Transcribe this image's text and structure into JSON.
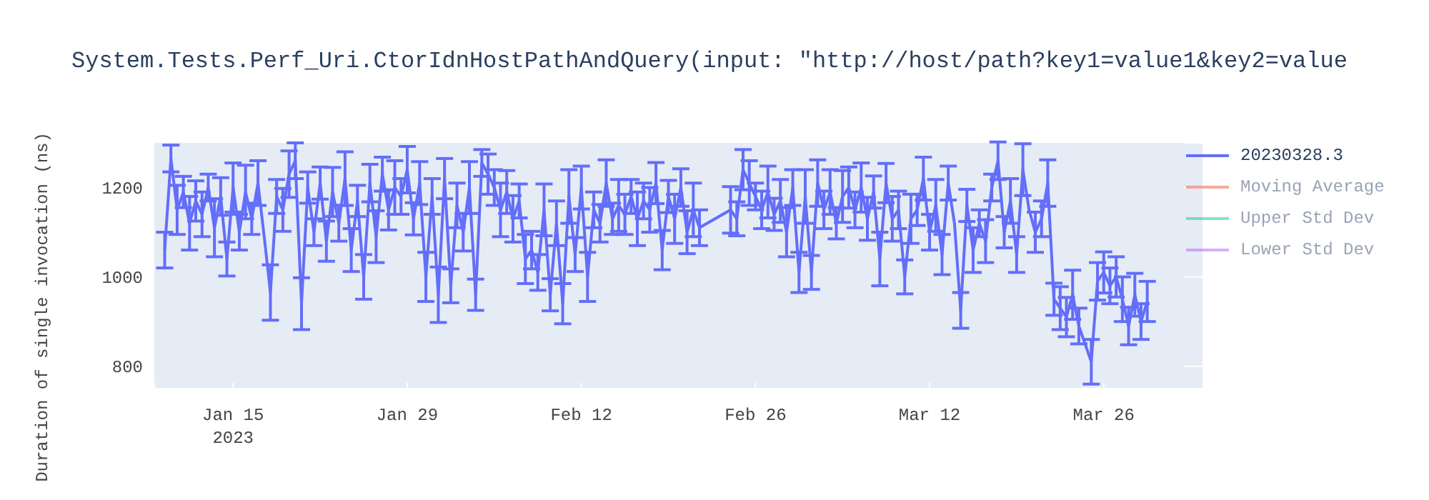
{
  "chart_data": {
    "type": "line",
    "title": "System.Tests.Perf_Uri.CtorIdnHostPathAndQuery(input: \"http://host/path?key1=value1&key2=value",
    "ylabel": "Duration of single invocation (ns)",
    "xlim": [
      "2023-01-08T16:00",
      "2023-04-03"
    ],
    "xticks": [
      {
        "value": "2023-01-15",
        "label": "Jan 15\n2023"
      },
      {
        "value": "2023-01-29",
        "label": "Jan 29"
      },
      {
        "value": "2023-02-12",
        "label": "Feb 12"
      },
      {
        "value": "2023-02-26",
        "label": "Feb 26"
      },
      {
        "value": "2023-03-12",
        "label": "Mar 12"
      },
      {
        "value": "2023-03-26",
        "label": "Mar 26"
      }
    ],
    "ylim": [
      750,
      1300
    ],
    "yticks": [
      800,
      1000,
      1200
    ],
    "grid": true,
    "legend": "top right",
    "marker": "none",
    "line_style": "solid",
    "x": [
      "2023-01-09T12:00",
      "2023-01-10T00:00",
      "2023-01-10T12:00",
      "2023-01-11T00:00",
      "2023-01-11T12:00",
      "2023-01-12T00:00",
      "2023-01-12T12:00",
      "2023-01-13T00:00",
      "2023-01-13T12:00",
      "2023-01-14T00:00",
      "2023-01-14T12:00",
      "2023-01-15T00:00",
      "2023-01-15T12:00",
      "2023-01-16T00:00",
      "2023-01-16T12:00",
      "2023-01-17T00:00",
      "2023-01-17T12:00",
      "2023-01-18T00:00",
      "2023-01-18T12:00",
      "2023-01-19T00:00",
      "2023-01-19T12:00",
      "2023-01-20T00:00",
      "2023-01-20T12:00",
      "2023-01-21T00:00",
      "2023-01-21T12:00",
      "2023-01-22T00:00",
      "2023-01-22T12:00",
      "2023-01-23T00:00",
      "2023-01-23T12:00",
      "2023-01-24T00:00",
      "2023-01-24T12:00",
      "2023-01-25T00:00",
      "2023-01-25T12:00",
      "2023-01-26T00:00",
      "2023-01-26T12:00",
      "2023-01-27T00:00",
      "2023-01-27T12:00",
      "2023-01-28T00:00",
      "2023-01-28T12:00",
      "2023-01-29T00:00",
      "2023-01-29T12:00",
      "2023-01-30T00:00",
      "2023-01-30T12:00",
      "2023-01-31T00:00",
      "2023-01-31T12:00",
      "2023-02-01T00:00",
      "2023-02-01T12:00",
      "2023-02-02T00:00",
      "2023-02-02T12:00",
      "2023-02-03T00:00",
      "2023-02-03T12:00",
      "2023-02-04T00:00",
      "2023-02-04T12:00",
      "2023-02-05T00:00",
      "2023-02-05T12:00",
      "2023-02-06T00:00",
      "2023-02-06T12:00",
      "2023-02-07T00:00",
      "2023-02-07T12:00",
      "2023-02-08T00:00",
      "2023-02-08T12:00",
      "2023-02-09T00:00",
      "2023-02-09T12:00",
      "2023-02-10T00:00",
      "2023-02-10T12:00",
      "2023-02-11T00:00",
      "2023-02-11T12:00",
      "2023-02-12T00:00",
      "2023-02-12T12:00",
      "2023-02-13T00:00",
      "2023-02-13T12:00",
      "2023-02-14T00:00",
      "2023-02-14T12:00",
      "2023-02-15T00:00",
      "2023-02-15T12:00",
      "2023-02-16T00:00",
      "2023-02-16T12:00",
      "2023-02-17T00:00",
      "2023-02-17T12:00",
      "2023-02-18T00:00",
      "2023-02-18T12:00",
      "2023-02-19T00:00",
      "2023-02-19T12:00",
      "2023-02-20T00:00",
      "2023-02-20T12:00",
      "2023-02-21T00:00",
      "2023-02-21T12:00",
      "2023-02-24T00:00",
      "2023-02-24T12:00",
      "2023-02-25T00:00",
      "2023-02-25T12:00",
      "2023-02-26T00:00",
      "2023-02-26T12:00",
      "2023-02-27T00:00",
      "2023-02-27T12:00",
      "2023-02-28T00:00",
      "2023-02-28T12:00",
      "2023-03-01T00:00",
      "2023-03-01T12:00",
      "2023-03-02T00:00",
      "2023-03-02T12:00",
      "2023-03-03T00:00",
      "2023-03-03T12:00",
      "2023-03-04T00:00",
      "2023-03-04T12:00",
      "2023-03-05T00:00",
      "2023-03-05T12:00",
      "2023-03-06T00:00",
      "2023-03-06T12:00",
      "2023-03-07T00:00",
      "2023-03-07T12:00",
      "2023-03-08T00:00",
      "2023-03-08T12:00",
      "2023-03-09T00:00",
      "2023-03-09T12:00",
      "2023-03-10T00:00",
      "2023-03-10T12:00",
      "2023-03-11T00:00",
      "2023-03-11T12:00",
      "2023-03-12T00:00",
      "2023-03-12T12:00",
      "2023-03-13T00:00",
      "2023-03-13T12:00",
      "2023-03-14T00:00",
      "2023-03-14T12:00",
      "2023-03-15T00:00",
      "2023-03-15T12:00",
      "2023-03-16T00:00",
      "2023-03-16T12:00",
      "2023-03-17T00:00",
      "2023-03-17T12:00",
      "2023-03-18T00:00",
      "2023-03-18T12:00",
      "2023-03-19T00:00",
      "2023-03-19T12:00",
      "2023-03-20T00:00",
      "2023-03-20T12:00",
      "2023-03-21T00:00",
      "2023-03-21T12:00",
      "2023-03-22T00:00",
      "2023-03-22T12:00",
      "2023-03-23T00:00",
      "2023-03-23T12:00",
      "2023-03-24T00:00",
      "2023-03-24T12:00",
      "2023-03-25T00:00",
      "2023-03-25T12:00",
      "2023-03-26T00:00",
      "2023-03-26T12:00",
      "2023-03-27T00:00",
      "2023-03-27T12:00",
      "2023-03-28T00:00",
      "2023-03-28T12:00",
      "2023-03-29T00:00",
      "2023-03-29T12:00"
    ],
    "series": [
      {
        "name": "20230328.3",
        "color": "#636efa",
        "values": [
          1060,
          1265,
          1150,
          1190,
          1120,
          1170,
          1140,
          1200,
          1110,
          1180,
          1040,
          1200,
          1100,
          1190,
          1130,
          1210,
          1090,
          965,
          1180,
          1150,
          1230,
          1260,
          940,
          1200,
          1100,
          1210,
          1080,
          1190,
          1120,
          1220,
          1060,
          1170,
          1000,
          1210,
          1090,
          1230,
          1150,
          1200,
          1180,
          1240,
          1130,
          1210,
          1000,
          1180,
          960,
          1220,
          980,
          1160,
          1100,
          1200,
          960,
          1255,
          1230,
          1200,
          1150,
          1190,
          1130,
          1170,
          1040,
          1060,
          1010,
          1150,
          960,
          1120,
          940,
          1180,
          1050,
          1200,
          1000,
          1150,
          1120,
          1210,
          1130,
          1160,
          1140,
          1180,
          1130,
          1170,
          1150,
          1210,
          1060,
          1180,
          1130,
          1200,
          1100,
          1150,
          1110,
          1150,
          1130,
          1240,
          1210,
          1180,
          1150,
          1190,
          1140,
          1170,
          1100,
          1200,
          1010,
          1180,
          1010,
          1210,
          1150,
          1190,
          1120,
          1180,
          1200,
          1150,
          1200,
          1130,
          1190,
          1040,
          1210,
          1130,
          1150,
          1000,
          1130,
          1150,
          1220,
          1100,
          1160,
          1050,
          1210,
          1120,
          925,
          1160,
          1060,
          1120,
          1080,
          1200,
          1260,
          1100,
          1170,
          1050,
          1240,
          1150,
          1100,
          1130,
          1210,
          950,
          930,
          910,
          960,
          890,
          850,
          810,
          990,
          1010,
          980,
          1000,
          950,
          890,
          960,
          900,
          945
        ],
        "errors": [
          40,
          30,
          55,
          35,
          60,
          45,
          50,
          30,
          65,
          42,
          38,
          55,
          40,
          60,
          35,
          50,
          null,
          62,
          38,
          48,
          52,
          40,
          58,
          35,
          30,
          36,
          45,
          55,
          40,
          60,
          48,
          35,
          50,
          42,
          58,
          38,
          45,
          60,
          40,
          52,
          36,
          48,
          55,
          40,
          62,
          45,
          38,
          50,
          42,
          58,
          35,
          30,
          45,
          40,
          60,
          48,
          52,
          38,
          55,
          42,
          40,
          58,
          36,
          50,
          45,
          60,
          38,
          48,
          55,
          40,
          42,
          52,
          35,
          58,
          45,
          38,
          60,
          40,
          50,
          46,
          44,
          36,
          55,
          42,
          48,
          60,
          40,
          52,
          38,
          45,
          50,
          30,
          42,
          58,
          36,
          48,
          55,
          40,
          45,
          60,
          38,
          52,
          42,
          50,
          35,
          58,
          46,
          40,
          55,
          48,
          36,
          60,
          44,
          50,
          42,
          38,
          55,
          35,
          48,
          40,
          58,
          45,
          38,
          null,
          40,
          36,
          50,
          30,
          48,
          30,
          42,
          35,
          50,
          40,
          58,
          null,
          45,
          40,
          52,
          36,
          48,
          44,
          55,
          40,
          null,
          50,
          42,
          46,
          40,
          45,
          50,
          42,
          48,
          40,
          45
        ]
      },
      {
        "name": "Moving Average",
        "color": "#ef553b",
        "values": [
          null,
          null,
          null,
          null,
          null,
          null,
          null,
          null,
          null,
          null,
          null,
          null,
          null,
          null,
          null,
          null,
          null,
          null,
          null,
          null,
          null,
          null,
          null,
          null,
          null,
          null,
          null,
          null,
          null,
          null,
          null,
          null,
          null,
          null,
          null,
          null,
          null,
          null,
          null,
          null,
          null,
          null,
          null,
          null,
          null,
          null,
          null,
          null,
          null,
          null,
          null,
          null,
          null,
          null,
          null,
          null,
          null,
          null,
          null,
          null,
          null,
          null,
          null,
          null,
          null,
          null,
          null,
          null,
          null,
          null,
          null,
          null,
          null,
          null,
          null,
          null,
          null,
          null,
          null,
          null,
          null,
          null,
          null,
          null,
          null,
          null,
          null,
          null,
          null,
          null,
          null,
          null,
          null,
          null,
          null,
          null,
          null,
          null,
          null,
          null,
          null,
          null,
          null,
          null,
          null,
          null,
          null,
          null,
          null,
          null,
          null,
          null,
          null,
          null,
          null,
          null,
          null,
          null,
          null,
          null,
          null,
          null,
          null,
          null,
          null,
          null,
          null,
          null,
          null,
          null,
          null,
          null,
          null,
          null,
          null,
          null,
          null,
          null,
          null,
          null,
          null,
          null,
          null,
          null,
          null,
          null,
          null,
          null,
          null,
          null,
          null,
          null,
          null,
          null,
          null
        ]
      },
      {
        "name": "Upper Std Dev",
        "color": "#00cc96",
        "values": [
          null,
          null,
          null,
          null,
          null,
          null,
          null,
          null,
          null,
          null,
          null,
          null,
          null,
          null,
          null,
          null,
          null,
          null,
          null,
          null,
          null,
          null,
          null,
          null,
          null,
          null,
          null,
          null,
          null,
          null,
          null,
          null,
          null,
          null,
          null,
          null,
          null,
          null,
          null,
          null,
          null,
          null,
          null,
          null,
          null,
          null,
          null,
          null,
          null,
          null,
          null,
          null,
          null,
          null,
          null,
          null,
          null,
          null,
          null,
          null,
          null,
          null,
          null,
          null,
          null,
          null,
          null,
          null,
          null,
          null,
          null,
          null,
          null,
          null,
          null,
          null,
          null,
          null,
          null,
          null,
          null,
          null,
          null,
          null,
          null,
          null,
          null,
          null,
          null,
          null,
          null,
          null,
          null,
          null,
          null,
          null,
          null,
          null,
          null,
          null,
          null,
          null,
          null,
          null,
          null,
          null,
          null,
          null,
          null,
          null,
          null,
          null,
          null,
          null,
          null,
          null,
          null,
          null,
          null,
          null,
          null,
          null,
          null,
          null,
          null,
          null,
          null,
          null,
          null,
          null,
          null,
          null,
          null,
          null,
          null,
          null,
          null,
          null,
          null,
          null,
          null,
          null,
          null,
          null,
          null,
          null,
          null,
          null,
          null,
          null,
          null,
          null,
          null,
          null,
          null
        ]
      },
      {
        "name": "Lower Std Dev",
        "color": "#ab63fa",
        "values": [
          null,
          null,
          null,
          null,
          null,
          null,
          null,
          null,
          null,
          null,
          null,
          null,
          null,
          null,
          null,
          null,
          null,
          null,
          null,
          null,
          null,
          null,
          null,
          null,
          null,
          null,
          null,
          null,
          null,
          null,
          null,
          null,
          null,
          null,
          null,
          null,
          null,
          null,
          null,
          null,
          null,
          null,
          null,
          null,
          null,
          null,
          null,
          null,
          null,
          null,
          null,
          null,
          null,
          null,
          null,
          null,
          null,
          null,
          null,
          null,
          null,
          null,
          null,
          null,
          null,
          null,
          null,
          null,
          null,
          null,
          null,
          null,
          null,
          null,
          null,
          null,
          null,
          null,
          null,
          null,
          null,
          null,
          null,
          null,
          null,
          null,
          null,
          null,
          null,
          null,
          null,
          null,
          null,
          null,
          null,
          null,
          null,
          null,
          null,
          null,
          null,
          null,
          null,
          null,
          null,
          null,
          null,
          null,
          null,
          null,
          null,
          null,
          null,
          null,
          null,
          null,
          null,
          null,
          null,
          null,
          null,
          null,
          null,
          null,
          null,
          null,
          null,
          null,
          null,
          null,
          null,
          null,
          null,
          null,
          null,
          null,
          null,
          null,
          null,
          null,
          null,
          null,
          null,
          null,
          null,
          null,
          null,
          null,
          null,
          null,
          null,
          null,
          null,
          null,
          null
        ]
      }
    ]
  }
}
